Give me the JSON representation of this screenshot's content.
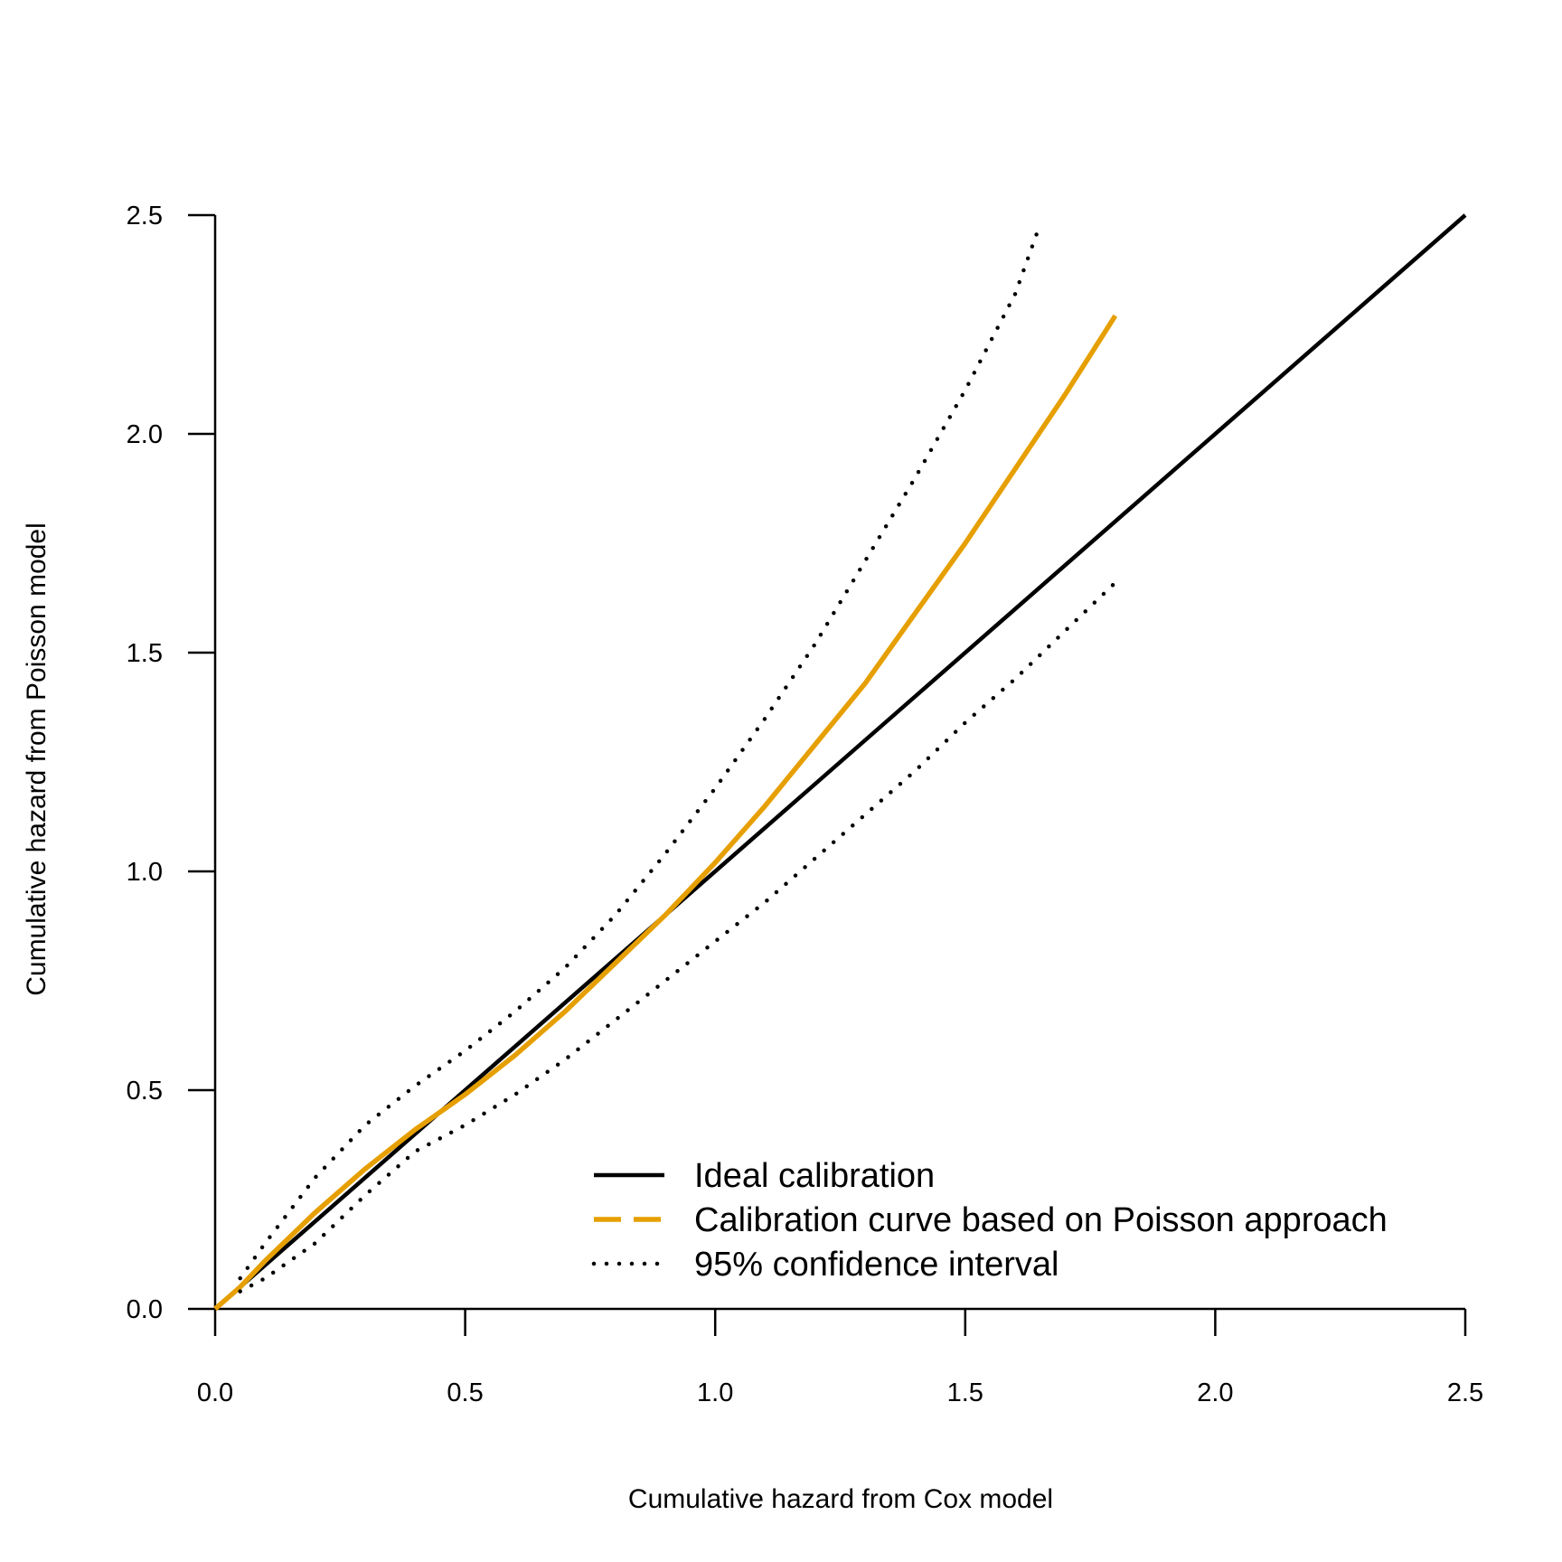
{
  "chart_data": {
    "type": "line",
    "title": "",
    "xlabel": "Cumulative hazard from Cox model",
    "ylabel": "Cumulative hazard from Poisson model",
    "xlim": [
      0,
      2.5
    ],
    "ylim": [
      0,
      2.5
    ],
    "xticks": [
      "0.0",
      "0.5",
      "1.0",
      "1.5",
      "2.0",
      "2.5"
    ],
    "yticks": [
      "0.0",
      "0.5",
      "1.0",
      "1.5",
      "2.0",
      "2.5"
    ],
    "grid": false,
    "legend_position": "bottom-right",
    "series": [
      {
        "name": "Ideal calibration",
        "color": "#000000",
        "style": "solid",
        "points": [
          [
            0,
            0
          ],
          [
            2.5,
            2.5
          ]
        ]
      },
      {
        "name": "Calibration curve based on Poisson approach",
        "color": "#E69F00",
        "style": "dashed",
        "points": [
          [
            0,
            0
          ],
          [
            0.05,
            0.05
          ],
          [
            0.1,
            0.11
          ],
          [
            0.2,
            0.22
          ],
          [
            0.3,
            0.32
          ],
          [
            0.4,
            0.41
          ],
          [
            0.5,
            0.49
          ],
          [
            0.6,
            0.58
          ],
          [
            0.7,
            0.68
          ],
          [
            0.8,
            0.79
          ],
          [
            0.9,
            0.9
          ],
          [
            1.0,
            1.02
          ],
          [
            1.1,
            1.15
          ],
          [
            1.2,
            1.29
          ],
          [
            1.3,
            1.43
          ],
          [
            1.4,
            1.59
          ],
          [
            1.5,
            1.75
          ],
          [
            1.6,
            1.92
          ],
          [
            1.7,
            2.09
          ],
          [
            1.8,
            2.27
          ]
        ]
      },
      {
        "name": "95% confidence interval",
        "color": "#000000",
        "style": "dotted",
        "points": [
          [
            0.05,
            0.07
          ],
          [
            0.1,
            0.15
          ],
          [
            0.2,
            0.3
          ],
          [
            0.3,
            0.42
          ],
          [
            0.4,
            0.51
          ],
          [
            0.5,
            0.59
          ],
          [
            0.6,
            0.68
          ],
          [
            0.7,
            0.78
          ],
          [
            0.8,
            0.9
          ],
          [
            0.9,
            1.04
          ],
          [
            1.0,
            1.19
          ],
          [
            1.1,
            1.35
          ],
          [
            1.2,
            1.52
          ],
          [
            1.3,
            1.71
          ],
          [
            1.4,
            1.9
          ],
          [
            1.5,
            2.1
          ],
          [
            1.6,
            2.32
          ],
          [
            1.65,
            2.48
          ]
        ]
      },
      {
        "name": "95% confidence interval",
        "color": "#000000",
        "style": "dotted",
        "points": [
          [
            0.05,
            0.04
          ],
          [
            0.1,
            0.07
          ],
          [
            0.2,
            0.15
          ],
          [
            0.3,
            0.26
          ],
          [
            0.4,
            0.36
          ],
          [
            0.5,
            0.42
          ],
          [
            0.6,
            0.49
          ],
          [
            0.7,
            0.57
          ],
          [
            0.8,
            0.66
          ],
          [
            0.9,
            0.75
          ],
          [
            1.0,
            0.84
          ],
          [
            1.1,
            0.93
          ],
          [
            1.2,
            1.03
          ],
          [
            1.3,
            1.13
          ],
          [
            1.4,
            1.23
          ],
          [
            1.5,
            1.34
          ],
          [
            1.6,
            1.44
          ],
          [
            1.7,
            1.55
          ],
          [
            1.8,
            1.66
          ]
        ]
      }
    ],
    "legend": [
      {
        "label": "Ideal calibration",
        "color": "#000000",
        "style": "solid"
      },
      {
        "label": "Calibration curve based on Poisson approach",
        "color": "#E69F00",
        "style": "dashed"
      },
      {
        "label": "95% confidence interval",
        "color": "#000000",
        "style": "dotted"
      }
    ]
  }
}
